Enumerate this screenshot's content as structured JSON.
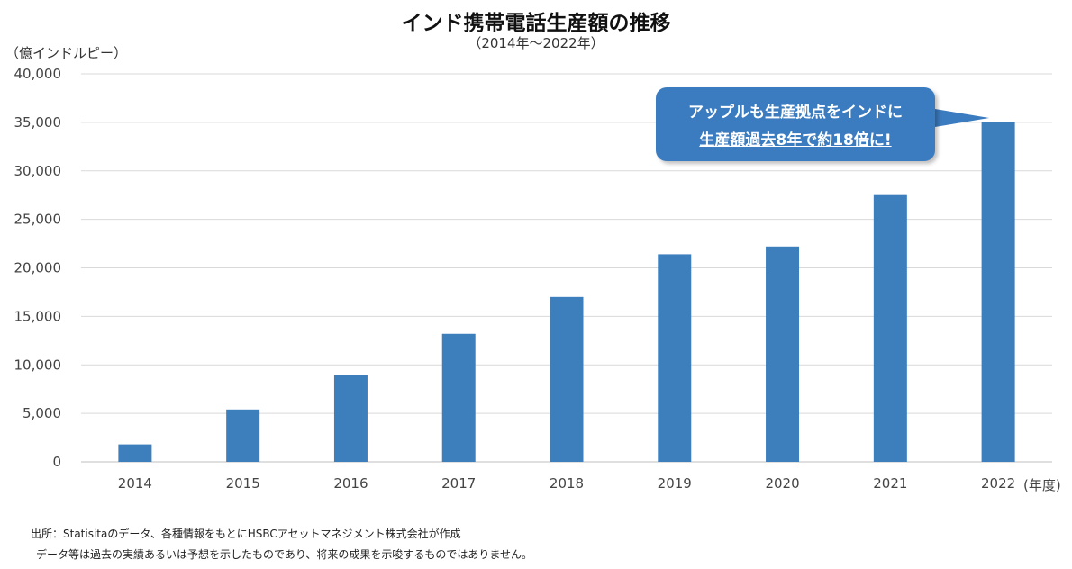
{
  "chart_data": {
    "type": "bar",
    "title": "インド携帯電話生産額の推移",
    "subtitle": "（2014年～2022年）",
    "ylabel": "（億インドルピー）",
    "xlabel": "(年度)",
    "categories": [
      "2014",
      "2015",
      "2016",
      "2017",
      "2018",
      "2019",
      "2020",
      "2021",
      "2022"
    ],
    "values": [
      1800,
      5400,
      9000,
      13200,
      17000,
      21400,
      22200,
      27500,
      35000
    ],
    "ylim": [
      0,
      40000
    ],
    "yticks": [
      0,
      5000,
      10000,
      15000,
      20000,
      25000,
      30000,
      35000,
      40000
    ],
    "ytick_labels": [
      "0",
      "5,000",
      "10,000",
      "15,000",
      "20,000",
      "25,000",
      "30,000",
      "35,000",
      "40,000"
    ],
    "grid": true,
    "bar_color": "#3d7ebd",
    "annotation": {
      "line1": "アップルも生産拠点をインドに",
      "line2": "生産額過去8年で約18倍に!",
      "color": "#3b7bbf"
    }
  },
  "notes": {
    "source": "出所：Statisitaのデータ、各種情報をもとにHSBCアセットマネジメント株式会社が作成",
    "disclaimer": "データ等は過去の実績あるいは予想を示したものであり、将来の成果を示唆するものではありません。"
  }
}
